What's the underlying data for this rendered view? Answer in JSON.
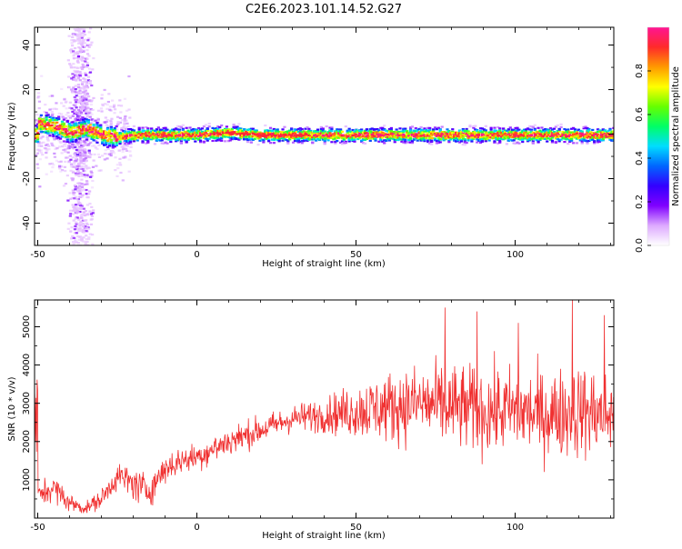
{
  "page": {
    "title": "C2E6.2023.101.14.52.G27"
  },
  "chart_data": [
    {
      "type": "heatmap",
      "xlabel": "Height of straight line (km)",
      "ylabel": "Frequency (Hz)",
      "xlim": [
        -51,
        131
      ],
      "ylim": [
        -50,
        48
      ],
      "xticks": [
        -50,
        0,
        50,
        100
      ],
      "yticks": [
        -40,
        -20,
        0,
        20,
        40
      ],
      "colorbar": {
        "label": "Normalized spectral amplitude",
        "range": [
          0,
          1
        ],
        "ticks": [
          "0.0",
          "0.2",
          "0.4",
          "0.6",
          "0.8"
        ],
        "colormap": [
          "#ffffff",
          "#ddaaff",
          "#8000ff",
          "#3300ff",
          "#0066ff",
          "#00ddff",
          "#00ff66",
          "#66ff00",
          "#ffff00",
          "#ff9900",
          "#ff2a2a",
          "#ff1493"
        ]
      },
      "ridge": [
        {
          "x": -50,
          "f": 5
        },
        {
          "x": -45,
          "f": 4
        },
        {
          "x": -40,
          "f": 1
        },
        {
          "x": -35,
          "f": 3
        },
        {
          "x": -30,
          "f": 0
        },
        {
          "x": -25,
          "f": -1
        },
        {
          "x": -20,
          "f": 0
        },
        {
          "x": -10,
          "f": 0
        },
        {
          "x": 0,
          "f": 0
        },
        {
          "x": 10,
          "f": 1
        },
        {
          "x": 20,
          "f": 0
        },
        {
          "x": 40,
          "f": 0
        },
        {
          "x": 60,
          "f": 0
        },
        {
          "x": 80,
          "f": 0
        },
        {
          "x": 100,
          "f": 0
        },
        {
          "x": 120,
          "f": 0
        },
        {
          "x": 130,
          "f": 0
        }
      ],
      "vertical_band_x": -37
    },
    {
      "type": "line",
      "xlabel": "Height of straight line (km)",
      "ylabel": "SNR (10 * v/v)",
      "xlim": [
        -51,
        131
      ],
      "ylim": [
        0,
        5700
      ],
      "xticks": [
        -50,
        0,
        50,
        100
      ],
      "yticks": [
        1000,
        2000,
        3000,
        4000,
        5000
      ],
      "color": "#f03030",
      "envelope": [
        {
          "x": -50,
          "mean": 600,
          "spread": 300
        },
        {
          "x": -45,
          "mean": 800,
          "spread": 350
        },
        {
          "x": -40,
          "mean": 400,
          "spread": 250
        },
        {
          "x": -35,
          "mean": 250,
          "spread": 150
        },
        {
          "x": -30,
          "mean": 500,
          "spread": 250
        },
        {
          "x": -25,
          "mean": 1100,
          "spread": 350
        },
        {
          "x": -20,
          "mean": 900,
          "spread": 450
        },
        {
          "x": -15,
          "mean": 700,
          "spread": 400
        },
        {
          "x": -10,
          "mean": 1300,
          "spread": 400
        },
        {
          "x": -5,
          "mean": 1500,
          "spread": 350
        },
        {
          "x": 0,
          "mean": 1600,
          "spread": 350
        },
        {
          "x": 10,
          "mean": 2000,
          "spread": 400
        },
        {
          "x": 20,
          "mean": 2300,
          "spread": 350
        },
        {
          "x": 30,
          "mean": 2600,
          "spread": 350
        },
        {
          "x": 40,
          "mean": 2700,
          "spread": 450
        },
        {
          "x": 50,
          "mean": 2800,
          "spread": 700
        },
        {
          "x": 60,
          "mean": 2900,
          "spread": 900
        },
        {
          "x": 70,
          "mean": 3000,
          "spread": 1000
        },
        {
          "x": 80,
          "mean": 2900,
          "spread": 1100
        },
        {
          "x": 90,
          "mean": 2800,
          "spread": 1100
        },
        {
          "x": 100,
          "mean": 2800,
          "spread": 1100
        },
        {
          "x": 110,
          "mean": 2700,
          "spread": 1100
        },
        {
          "x": 120,
          "mean": 2800,
          "spread": 1200
        },
        {
          "x": 130,
          "mean": 2700,
          "spread": 1100
        }
      ],
      "peaks": [
        {
          "x": 78,
          "y": 5500
        },
        {
          "x": 88,
          "y": 5400
        },
        {
          "x": 118,
          "y": 5700
        },
        {
          "x": 128,
          "y": 5300
        },
        {
          "x": 101,
          "y": 5100
        }
      ]
    }
  ]
}
